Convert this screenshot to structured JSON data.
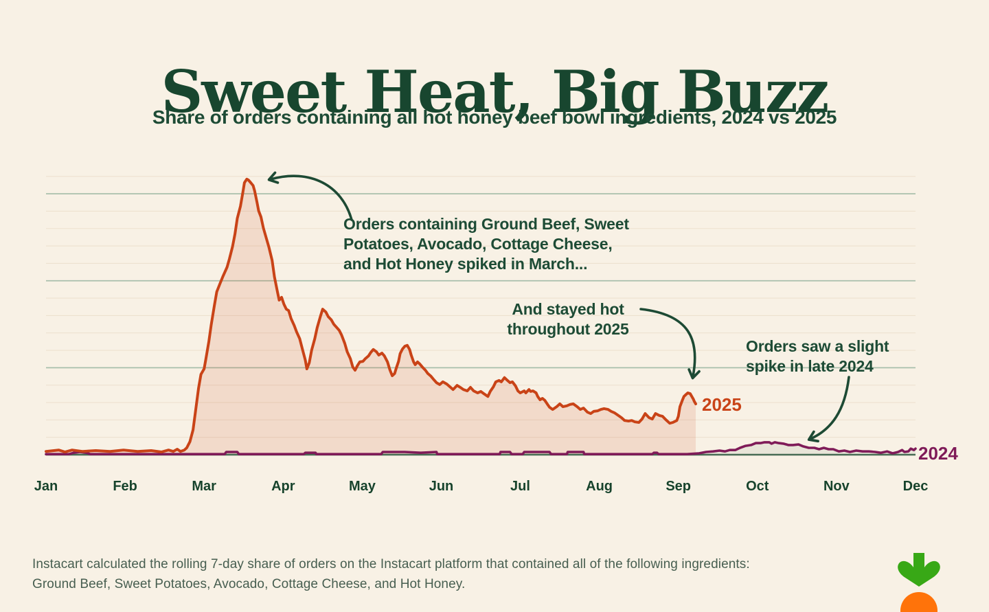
{
  "header": {
    "title": "Sweet Heat, Big Buzz",
    "subtitle": "Share of orders containing all hot honey beef bowl ingredients, 2024 vs 2025"
  },
  "annotations": {
    "march_spike": "Orders containing Ground Beef, Sweet\nPotatoes, Avocado, Cottage Cheese,\nand Hot Honey spiked in March...",
    "stayed_hot": "And stayed hot\nthroughout 2025",
    "late_2024": "Orders saw a slight\nspike in late 2024"
  },
  "series_labels": {
    "s2025": "2025",
    "s2024": "2024"
  },
  "footer": {
    "text": "Instacart calculated the rolling 7-day share of orders on the Instacart platform that contained all of the following ingredients: Ground Beef, Sweet Potatoes, Avocado, Cottage Cheese, and Hot Honey."
  },
  "colors": {
    "background": "#f8f1e5",
    "title_green": "#18462f",
    "text_green": "#1d4b35",
    "footer_green": "#475e50",
    "line_2025": "#c94317",
    "fill_2025": "rgba(201,67,23,0.13)",
    "line_2024": "#7f1b58",
    "fill_2024": "rgba(30,75,53,0.07)",
    "major_grid": "#a9bfac",
    "minor_grid": "#ede1cf",
    "axis": "#476b53",
    "arrow": "#1d4a34",
    "logo_green": "#38a816",
    "logo_orange": "#ff730a"
  },
  "chart_data": {
    "type": "area",
    "title": "Share of orders containing all hot honey beef bowl ingredients, 2024 vs 2025",
    "x_labels": [
      "Jan",
      "Feb",
      "Mar",
      "Apr",
      "May",
      "Jun",
      "Jul",
      "Aug",
      "Sep",
      "Oct",
      "Nov",
      "Dec"
    ],
    "xlim": [
      0,
      11
    ],
    "ylim": [
      0,
      105
    ],
    "y_axis_note": "unlabeled y-axis; values are a relative share index where the mid-March 2025 peak = 100",
    "grid": {
      "orientation": "horizontal",
      "minor_step_v": 6.3,
      "minor_count": 16,
      "major_every": 5
    },
    "legend_position": "inline end-of-line labels",
    "series": [
      {
        "name": "2024",
        "points": [
          [
            0,
            0.2
          ],
          [
            0.29,
            0.2
          ],
          [
            0.35,
            0.7
          ],
          [
            0.43,
            1
          ],
          [
            0.51,
            0.7
          ],
          [
            0.56,
            0.2
          ],
          [
            0.98,
            0.2
          ],
          [
            1.5,
            0.2
          ],
          [
            2.02,
            0.2
          ],
          [
            2.26,
            0.2
          ],
          [
            2.28,
            1
          ],
          [
            2.42,
            1
          ],
          [
            2.44,
            0.2
          ],
          [
            2.89,
            0.2
          ],
          [
            3.26,
            0.2
          ],
          [
            3.28,
            0.7
          ],
          [
            3.41,
            0.7
          ],
          [
            3.42,
            0.2
          ],
          [
            3.94,
            0.2
          ],
          [
            4.24,
            0.2
          ],
          [
            4.26,
            1
          ],
          [
            4.54,
            1
          ],
          [
            4.74,
            0.7
          ],
          [
            4.94,
            1
          ],
          [
            4.95,
            0.2
          ],
          [
            5.5,
            0.2
          ],
          [
            5.74,
            0.2
          ],
          [
            5.75,
            1
          ],
          [
            5.87,
            1
          ],
          [
            5.89,
            0.2
          ],
          [
            6.03,
            0.2
          ],
          [
            6.05,
            1
          ],
          [
            6.37,
            1
          ],
          [
            6.39,
            0.2
          ],
          [
            6.59,
            0.2
          ],
          [
            6.6,
            1
          ],
          [
            6.8,
            1
          ],
          [
            6.81,
            0.2
          ],
          [
            7.24,
            0.2
          ],
          [
            7.67,
            0.2
          ],
          [
            7.69,
            0.7
          ],
          [
            7.73,
            0.7
          ],
          [
            7.75,
            0.2
          ],
          [
            8.11,
            0.2
          ],
          [
            8.26,
            0.5
          ],
          [
            8.35,
            1
          ],
          [
            8.44,
            1.2
          ],
          [
            8.52,
            1.5
          ],
          [
            8.59,
            1.2
          ],
          [
            8.65,
            1.7
          ],
          [
            8.72,
            1.7
          ],
          [
            8.78,
            2.5
          ],
          [
            8.85,
            3.2
          ],
          [
            8.92,
            3.5
          ],
          [
            8.98,
            4.2
          ],
          [
            9.04,
            4.2
          ],
          [
            9.09,
            4.5
          ],
          [
            9.15,
            4.5
          ],
          [
            9.18,
            4
          ],
          [
            9.22,
            4.5
          ],
          [
            9.27,
            4.2
          ],
          [
            9.33,
            4
          ],
          [
            9.39,
            3.5
          ],
          [
            9.45,
            3.5
          ],
          [
            9.52,
            3.7
          ],
          [
            9.58,
            3
          ],
          [
            9.65,
            2.5
          ],
          [
            9.72,
            2.5
          ],
          [
            9.78,
            2
          ],
          [
            9.84,
            2.5
          ],
          [
            9.9,
            2
          ],
          [
            9.96,
            2
          ],
          [
            10.03,
            1.2
          ],
          [
            10.1,
            1.5
          ],
          [
            10.17,
            1
          ],
          [
            10.25,
            1.5
          ],
          [
            10.33,
            1.2
          ],
          [
            10.41,
            1.2
          ],
          [
            10.49,
            1
          ],
          [
            10.56,
            0.7
          ],
          [
            10.64,
            1.2
          ],
          [
            10.71,
            0.5
          ],
          [
            10.78,
            1
          ],
          [
            10.83,
            1.7
          ],
          [
            10.86,
            1
          ],
          [
            10.91,
            1.2
          ],
          [
            10.94,
            2.2
          ],
          [
            10.98,
            1.7
          ],
          [
            11,
            2.2
          ]
        ]
      },
      {
        "name": "2025",
        "points": [
          [
            0,
            1.2
          ],
          [
            0.16,
            1.7
          ],
          [
            0.24,
            1
          ],
          [
            0.33,
            1.7
          ],
          [
            0.46,
            1.2
          ],
          [
            0.63,
            1.5
          ],
          [
            0.81,
            1.2
          ],
          [
            0.98,
            1.7
          ],
          [
            1.16,
            1.2
          ],
          [
            1.33,
            1.5
          ],
          [
            1.46,
            1
          ],
          [
            1.55,
            1.7
          ],
          [
            1.61,
            1.2
          ],
          [
            1.66,
            2
          ],
          [
            1.7,
            1.2
          ],
          [
            1.75,
            1.7
          ],
          [
            1.78,
            2.5
          ],
          [
            1.82,
            4.7
          ],
          [
            1.86,
            9
          ],
          [
            1.89,
            15.4
          ],
          [
            1.93,
            24.1
          ],
          [
            1.96,
            29.1
          ],
          [
            2,
            31.1
          ],
          [
            2.02,
            34.3
          ],
          [
            2.06,
            41
          ],
          [
            2.09,
            47
          ],
          [
            2.13,
            54
          ],
          [
            2.16,
            59
          ],
          [
            2.2,
            61.9
          ],
          [
            2.24,
            64.7
          ],
          [
            2.29,
            67.9
          ],
          [
            2.32,
            70.9
          ],
          [
            2.36,
            75.4
          ],
          [
            2.39,
            79.9
          ],
          [
            2.42,
            85.6
          ],
          [
            2.46,
            90
          ],
          [
            2.49,
            95
          ],
          [
            2.51,
            98.5
          ],
          [
            2.54,
            99.8
          ],
          [
            2.56,
            99.5
          ],
          [
            2.59,
            98.5
          ],
          [
            2.62,
            97.5
          ],
          [
            2.64,
            95.5
          ],
          [
            2.67,
            91.3
          ],
          [
            2.69,
            88.3
          ],
          [
            2.72,
            86.1
          ],
          [
            2.75,
            82.1
          ],
          [
            2.79,
            78.1
          ],
          [
            2.82,
            75.1
          ],
          [
            2.86,
            70.4
          ],
          [
            2.89,
            64.4
          ],
          [
            2.93,
            58.7
          ],
          [
            2.95,
            56
          ],
          [
            2.98,
            57
          ],
          [
            3.01,
            54.5
          ],
          [
            3.04,
            52.7
          ],
          [
            3.07,
            52.2
          ],
          [
            3.1,
            49.3
          ],
          [
            3.14,
            46.8
          ],
          [
            3.17,
            44.5
          ],
          [
            3.21,
            42
          ],
          [
            3.24,
            38.6
          ],
          [
            3.28,
            34.3
          ],
          [
            3.3,
            31.1
          ],
          [
            3.33,
            33.3
          ],
          [
            3.36,
            37.8
          ],
          [
            3.4,
            42
          ],
          [
            3.43,
            46
          ],
          [
            3.47,
            50
          ],
          [
            3.5,
            52.7
          ],
          [
            3.54,
            51.7
          ],
          [
            3.57,
            50
          ],
          [
            3.61,
            48.8
          ],
          [
            3.64,
            47.3
          ],
          [
            3.68,
            46
          ],
          [
            3.71,
            45
          ],
          [
            3.74,
            43.3
          ],
          [
            3.78,
            40.3
          ],
          [
            3.81,
            37.3
          ],
          [
            3.85,
            34.8
          ],
          [
            3.88,
            31.8
          ],
          [
            3.91,
            30.6
          ],
          [
            3.94,
            32.3
          ],
          [
            3.97,
            33.6
          ],
          [
            4.01,
            33.8
          ],
          [
            4.04,
            34.8
          ],
          [
            4.08,
            35.8
          ],
          [
            4.11,
            37.1
          ],
          [
            4.14,
            38.1
          ],
          [
            4.18,
            37.3
          ],
          [
            4.21,
            36.1
          ],
          [
            4.25,
            36.8
          ],
          [
            4.28,
            35.8
          ],
          [
            4.32,
            33.6
          ],
          [
            4.35,
            30.8
          ],
          [
            4.38,
            28.6
          ],
          [
            4.41,
            29.4
          ],
          [
            4.43,
            31.3
          ],
          [
            4.46,
            33.8
          ],
          [
            4.48,
            36.6
          ],
          [
            4.51,
            38.3
          ],
          [
            4.54,
            39.3
          ],
          [
            4.57,
            39.6
          ],
          [
            4.6,
            38.1
          ],
          [
            4.62,
            36.1
          ],
          [
            4.65,
            33.6
          ],
          [
            4.67,
            32.6
          ],
          [
            4.7,
            33.6
          ],
          [
            4.73,
            32.8
          ],
          [
            4.76,
            31.8
          ],
          [
            4.8,
            30.6
          ],
          [
            4.83,
            29.4
          ],
          [
            4.87,
            28.4
          ],
          [
            4.9,
            27.4
          ],
          [
            4.94,
            26.1
          ],
          [
            4.98,
            25.4
          ],
          [
            5.02,
            26.4
          ],
          [
            5.07,
            25.6
          ],
          [
            5.11,
            24.6
          ],
          [
            5.15,
            23.6
          ],
          [
            5.2,
            25.1
          ],
          [
            5.24,
            24.4
          ],
          [
            5.28,
            23.6
          ],
          [
            5.33,
            23.1
          ],
          [
            5.37,
            24.4
          ],
          [
            5.41,
            23.1
          ],
          [
            5.46,
            22.4
          ],
          [
            5.5,
            22.9
          ],
          [
            5.54,
            22.1
          ],
          [
            5.59,
            21.1
          ],
          [
            5.62,
            22.9
          ],
          [
            5.66,
            24.6
          ],
          [
            5.69,
            26.4
          ],
          [
            5.73,
            26.9
          ],
          [
            5.76,
            26.4
          ],
          [
            5.8,
            27.9
          ],
          [
            5.83,
            27.1
          ],
          [
            5.87,
            26.1
          ],
          [
            5.9,
            26.4
          ],
          [
            5.94,
            24.9
          ],
          [
            5.97,
            23.1
          ],
          [
            6,
            22.4
          ],
          [
            6.05,
            23.1
          ],
          [
            6.07,
            22.4
          ],
          [
            6.11,
            23.6
          ],
          [
            6.13,
            22.9
          ],
          [
            6.16,
            23.1
          ],
          [
            6.2,
            22.4
          ],
          [
            6.22,
            21.1
          ],
          [
            6.25,
            19.9
          ],
          [
            6.28,
            20.4
          ],
          [
            6.31,
            19.7
          ],
          [
            6.34,
            18.4
          ],
          [
            6.37,
            17.2
          ],
          [
            6.41,
            16.4
          ],
          [
            6.46,
            17.4
          ],
          [
            6.5,
            18.4
          ],
          [
            6.54,
            17.4
          ],
          [
            6.59,
            17.7
          ],
          [
            6.63,
            18.2
          ],
          [
            6.67,
            18.4
          ],
          [
            6.72,
            17.4
          ],
          [
            6.76,
            16.4
          ],
          [
            6.8,
            16.9
          ],
          [
            6.85,
            15.4
          ],
          [
            6.89,
            14.9
          ],
          [
            6.93,
            15.7
          ],
          [
            6.98,
            15.9
          ],
          [
            7.02,
            16.4
          ],
          [
            7.06,
            16.7
          ],
          [
            7.11,
            16.4
          ],
          [
            7.15,
            15.7
          ],
          [
            7.19,
            15.2
          ],
          [
            7.24,
            14.2
          ],
          [
            7.28,
            13.4
          ],
          [
            7.32,
            12.4
          ],
          [
            7.37,
            12.2
          ],
          [
            7.41,
            12.4
          ],
          [
            7.45,
            11.9
          ],
          [
            7.5,
            11.7
          ],
          [
            7.54,
            12.9
          ],
          [
            7.58,
            14.9
          ],
          [
            7.63,
            13.4
          ],
          [
            7.67,
            12.9
          ],
          [
            7.71,
            14.9
          ],
          [
            7.76,
            14.2
          ],
          [
            7.8,
            13.9
          ],
          [
            7.84,
            12.7
          ],
          [
            7.89,
            11.4
          ],
          [
            7.93,
            11.7
          ],
          [
            7.98,
            12.4
          ],
          [
            8,
            13.9
          ],
          [
            8.02,
            17.4
          ],
          [
            8.05,
            19.7
          ],
          [
            8.07,
            21.1
          ],
          [
            8.1,
            21.9
          ],
          [
            8.12,
            22.4
          ],
          [
            8.15,
            22.1
          ],
          [
            8.17,
            21.1
          ],
          [
            8.19,
            20.1
          ],
          [
            8.2,
            19.4
          ],
          [
            8.22,
            18.4
          ]
        ]
      }
    ]
  }
}
